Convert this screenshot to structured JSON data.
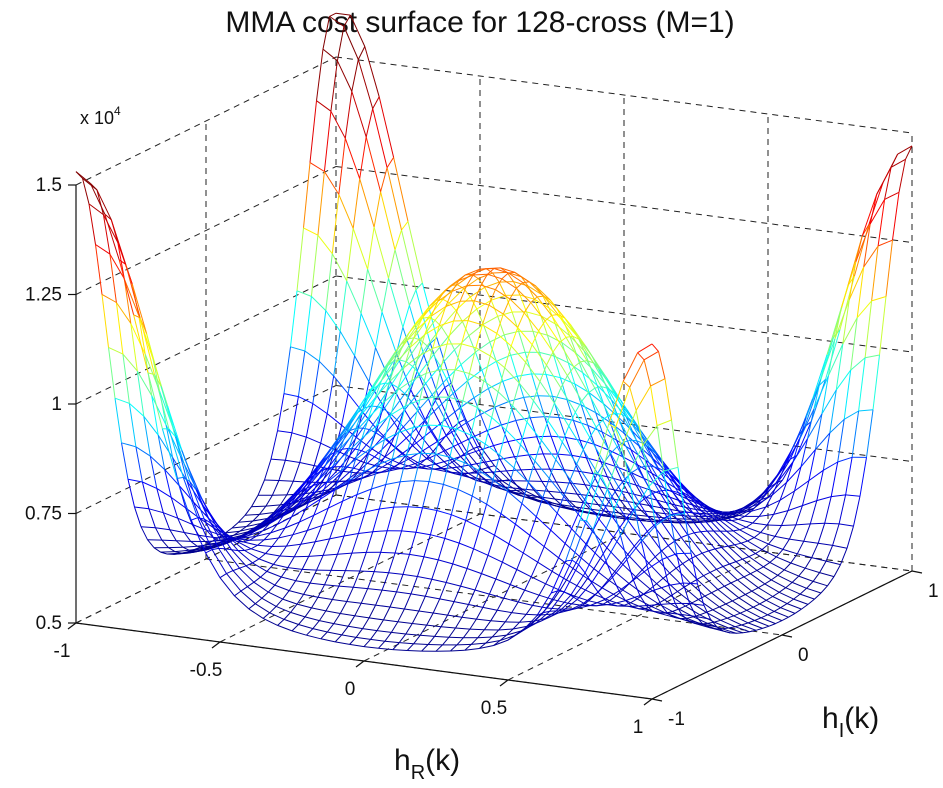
{
  "chart_data": {
    "type": "surface",
    "title": "MMA cost surface for 128-cross (M=1)",
    "xlabel": {
      "main": "h",
      "sub": "R",
      "tail": "(k)"
    },
    "ylabel": {
      "main": "h",
      "sub": "I",
      "tail": "(k)"
    },
    "zlabel": "",
    "z_multiplier": {
      "base": "x 10",
      "exp": "4"
    },
    "x_range": [
      -1,
      1
    ],
    "y_range": [
      -1,
      1
    ],
    "z_range": [
      0.5,
      1.5
    ],
    "x_ticks": [
      "-1",
      "-0.5",
      "0",
      "0.5",
      "1"
    ],
    "y_ticks": [
      "-1",
      "0",
      "1"
    ],
    "z_ticks": [
      "0.5",
      "0.75",
      "1",
      "1.25",
      "1.5"
    ],
    "grid": true,
    "colormap": "jet",
    "colormap_stops": [
      "#00008f",
      "#0000ff",
      "#00ffff",
      "#ffff00",
      "#ff0000",
      "#800000"
    ],
    "mesh_resolution": 41,
    "surface_samples": [
      {
        "hR": -1,
        "hI": -1,
        "z": 1.48
      },
      {
        "hR": -1,
        "hI": 1,
        "z": 1.58
      },
      {
        "hR": 1,
        "hI": -1,
        "z": 1.24
      },
      {
        "hR": 1,
        "hI": 1,
        "z": 1.41
      },
      {
        "hR": 0,
        "hI": 0,
        "z": 1.32
      },
      {
        "hR": -0.6,
        "hI": -0.6,
        "z": 0.72
      },
      {
        "hR": 0.6,
        "hI": 0.6,
        "z": 0.72
      },
      {
        "hR": 0.6,
        "hI": -0.6,
        "z": 0.72
      },
      {
        "hR": -0.6,
        "hI": 0.6,
        "z": 0.72
      }
    ]
  }
}
